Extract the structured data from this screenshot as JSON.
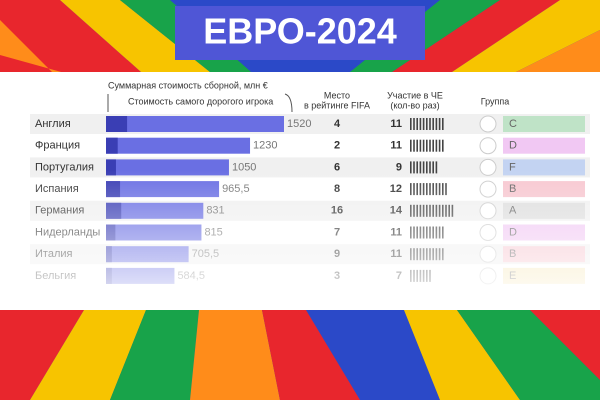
{
  "chart_data": {
    "type": "bar",
    "title": "ЕВРО-2024",
    "value_axis_label": "Суммарная стоимость сборной, млн €",
    "top_player_label": "Стоимость самого дорогого игрока",
    "rank_label": [
      "Место",
      "в рейтинге FIFA"
    ],
    "participation_label": [
      "Участие в ЧЕ",
      "(кол-во раз)"
    ],
    "group_label": "Группа",
    "categories": [
      "Англия",
      "Франция",
      "Португалия",
      "Испания",
      "Германия",
      "Нидерланды",
      "Италия",
      "Бельгия"
    ],
    "values": [
      1520,
      1230,
      1050,
      965.5,
      831,
      815,
      705.5,
      584.5
    ],
    "value_labels": [
      "1520",
      "1230",
      "1050",
      "965,5",
      "831",
      "815",
      "705,5",
      "584,5"
    ],
    "top_player": [
      180,
      100,
      85,
      120,
      130,
      80,
      50,
      50
    ],
    "color": "#6a6fe3",
    "top_player_color": "#3a3eb4",
    "ranks": [
      4,
      2,
      6,
      8,
      16,
      7,
      9,
      3
    ],
    "participations": [
      11,
      11,
      9,
      12,
      14,
      11,
      11,
      7
    ],
    "groups": [
      "C",
      "D",
      "F",
      "B",
      "A",
      "D",
      "B",
      "E"
    ],
    "group_colors": [
      "#bfe3c7",
      "#f1c8f3",
      "#c3d3f2",
      "#f7c7d0",
      "#dddddd",
      "#f1c8f3",
      "#f7c7d0",
      "#f6e6b5"
    ],
    "xlim": [
      0,
      1520
    ]
  }
}
